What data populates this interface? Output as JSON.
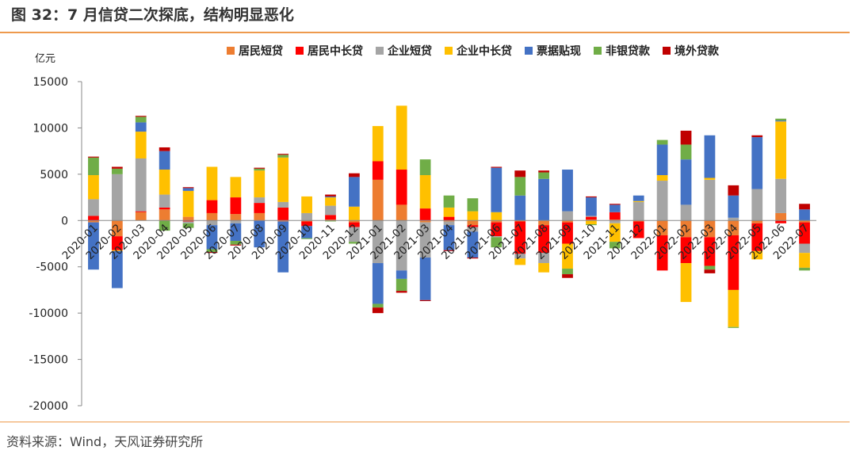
{
  "header": {
    "title": "图 32：7 月信贷二次探底，结构明显恶化"
  },
  "footer": {
    "source": "资料来源：Wind，天风证券研究所"
  },
  "colors": {
    "居民短贷": "#ED7D31",
    "居民中长贷": "#FF0000",
    "企业短贷": "#A5A5A5",
    "企业中长贷": "#FFC000",
    "票据贴现": "#4472C4",
    "非银贷款": "#70AD47",
    "境外贷款": "#C00000"
  },
  "chart_data": {
    "type": "bar",
    "stacked": true,
    "unit_label": "亿元",
    "yticks": [
      "15000",
      "10000",
      "5000",
      "0",
      "-5000",
      "-10000",
      "-15000",
      "-20000"
    ],
    "ylim": [
      -20000,
      15000
    ],
    "legend_position": "top",
    "categories": [
      "2020-01",
      "2020-02",
      "2020-03",
      "2020-04",
      "2020-05",
      "2020-06",
      "2020-07",
      "2020-08",
      "2020-09",
      "2020-10",
      "2020-11",
      "2020-12",
      "2021-01",
      "2021-02",
      "2021-03",
      "2021-04",
      "2021-05",
      "2021-06",
      "2021-07",
      "2021-08",
      "2021-09",
      "2021-10",
      "2021-11",
      "2021-12",
      "2022-01",
      "2022-02",
      "2022-03",
      "2022-04",
      "2022-05",
      "2022-06",
      "2022-07"
    ],
    "series": [
      {
        "name": "居民短贷",
        "values": [
          -200,
          -1700,
          900,
          1200,
          400,
          800,
          700,
          800,
          -100,
          -100,
          100,
          -200,
          4400,
          1700,
          -200,
          -100,
          -500,
          -200,
          -100,
          -500,
          -200,
          100,
          100,
          -100,
          -1600,
          -1800,
          -1800,
          -1600,
          -300,
          800,
          -200
        ]
      },
      {
        "name": "居民中长贷",
        "values": [
          500,
          -1500,
          100,
          200,
          -100,
          1400,
          1800,
          1100,
          1400,
          -500,
          500,
          -500,
          2000,
          3800,
          1300,
          400,
          -200,
          -1500,
          -3500,
          -3000,
          -2300,
          300,
          800,
          -1800,
          -3800,
          -2800,
          -3100,
          -5900,
          -3000,
          -300,
          -2300
        ]
      },
      {
        "name": "企业短贷",
        "values": [
          1800,
          5000,
          5700,
          1400,
          -200,
          -500,
          -300,
          600,
          600,
          800,
          1000,
          -1600,
          -4600,
          -5400,
          -3800,
          -400,
          -500,
          -100,
          -500,
          -1100,
          1000,
          100,
          -300,
          2000,
          4300,
          1700,
          4400,
          300,
          3400,
          3700,
          -1000
        ]
      },
      {
        "name": "企业中长贷",
        "values": [
          2600,
          -100,
          2900,
          2700,
          2800,
          3600,
          2200,
          2900,
          4800,
          1800,
          900,
          1500,
          3800,
          6900,
          3600,
          1000,
          1000,
          900,
          -700,
          -1000,
          -2700,
          -400,
          -2000,
          100,
          600,
          -4200,
          200,
          -4000,
          -900,
          6200,
          -1600
        ]
      },
      {
        "name": "票据贴现",
        "values": [
          -5100,
          -4000,
          1000,
          2000,
          300,
          -2600,
          -1900,
          -2900,
          -5500,
          -1300,
          100,
          3200,
          -4400,
          -900,
          -4600,
          -2700,
          -2800,
          4800,
          2700,
          4500,
          4500,
          2000,
          800,
          600,
          3300,
          4900,
          4600,
          2400,
          5600,
          100,
          1200
        ]
      },
      {
        "name": "非银贷款",
        "values": [
          1900,
          600,
          600,
          -1100,
          -500,
          -300,
          -400,
          200,
          300,
          -100,
          -100,
          -200,
          -400,
          -1300,
          1700,
          1300,
          1400,
          -1100,
          2000,
          700,
          -600,
          -100,
          -700,
          0,
          500,
          1600,
          -400,
          -100,
          0,
          200,
          -300
        ]
      },
      {
        "name": "境外贷款",
        "values": [
          100,
          200,
          100,
          400,
          100,
          -100,
          -100,
          100,
          100,
          0,
          200,
          400,
          -600,
          -200,
          -100,
          -100,
          -100,
          100,
          700,
          200,
          -400,
          100,
          100,
          0,
          0,
          1500,
          -400,
          1100,
          200,
          0,
          600
        ]
      }
    ]
  }
}
